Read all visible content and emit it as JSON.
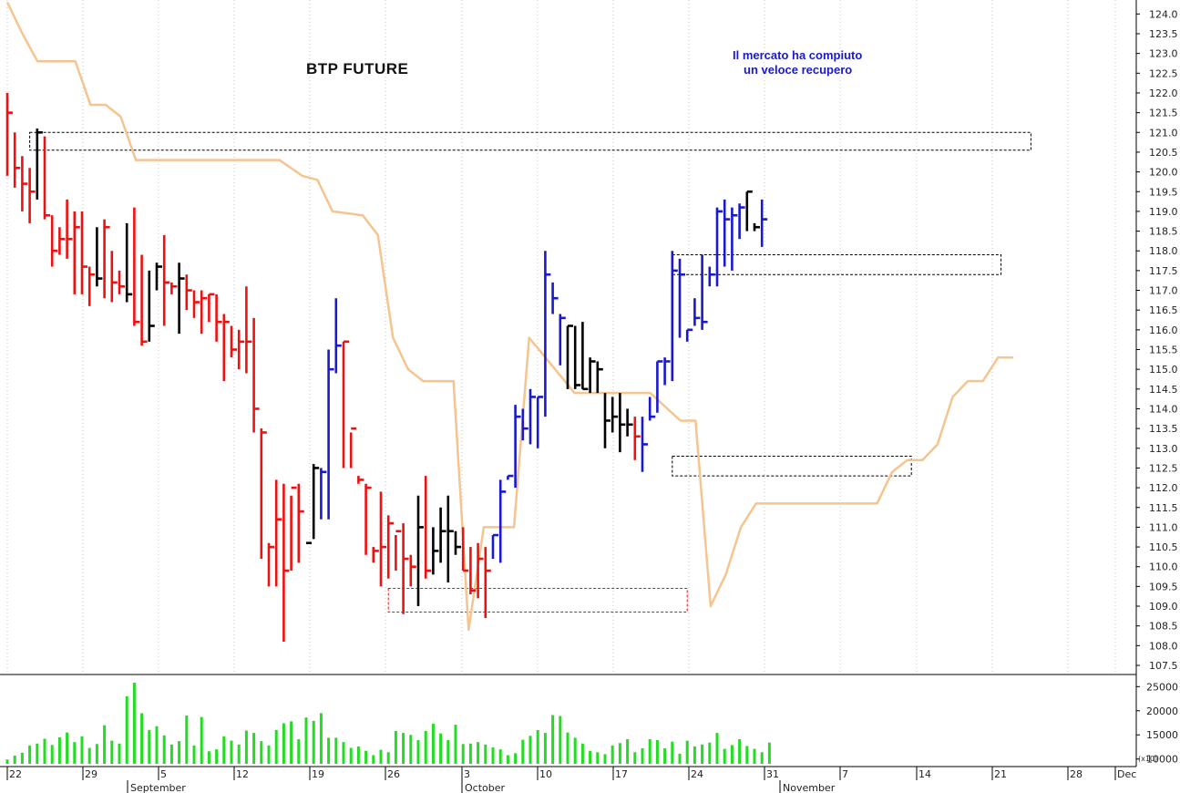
{
  "title": "BTP  FUTURE",
  "annotation": [
    "Il mercato ha compiuto",
    "un veloce recupero"
  ],
  "volume_multiplier_label": "(x10)",
  "colors": {
    "down": "#ee1111",
    "up": "#1a1acc",
    "neutral": "#000000",
    "trailing_stop": "#f6c48e",
    "volume": "#22dd22",
    "box_black": "#000000",
    "box_red": "#ee1111"
  },
  "chart_data": [
    {
      "type": "ohlc",
      "title": "BTP  FUTURE",
      "x_day_labels": [
        "22",
        "29",
        "5",
        "12",
        "19",
        "26",
        "3",
        "10",
        "17",
        "24",
        "31",
        "7",
        "14",
        "21",
        "28",
        "Dec"
      ],
      "x_month_labels": [
        "September",
        "October",
        "November"
      ],
      "y_ticks": [
        107.5,
        108.0,
        108.5,
        109.0,
        109.5,
        110.0,
        110.5,
        111.0,
        111.5,
        112.0,
        112.5,
        113.0,
        113.5,
        114.0,
        114.5,
        115.0,
        115.5,
        116.0,
        116.5,
        117.0,
        117.5,
        118.0,
        118.5,
        119.0,
        119.5,
        120.0,
        120.5,
        121.0,
        121.5,
        122.0,
        122.5,
        123.0,
        123.5,
        124.0
      ],
      "ylim": [
        107.2,
        124.3
      ],
      "bars": [
        {
          "h": 122.0,
          "l": 119.9,
          "c": 121.5,
          "col": "down"
        },
        {
          "h": 121.0,
          "l": 119.6,
          "c": 120.1,
          "col": "down"
        },
        {
          "h": 120.4,
          "l": 119.0,
          "c": 119.7,
          "col": "down"
        },
        {
          "h": 120.1,
          "l": 118.7,
          "c": 119.5,
          "col": "down"
        },
        {
          "h": 121.1,
          "l": 119.3,
          "c": 121.0,
          "col": "neutral"
        },
        {
          "h": 120.9,
          "l": 118.8,
          "c": 118.9,
          "col": "down"
        },
        {
          "h": 118.9,
          "l": 117.6,
          "c": 118.0,
          "col": "down"
        },
        {
          "h": 118.6,
          "l": 117.9,
          "c": 118.3,
          "col": "down"
        },
        {
          "h": 119.3,
          "l": 117.8,
          "c": 118.3,
          "col": "down"
        },
        {
          "h": 119.0,
          "l": 116.9,
          "c": 118.6,
          "col": "down"
        },
        {
          "h": 119.0,
          "l": 116.9,
          "c": 117.6,
          "col": "down"
        },
        {
          "h": 117.6,
          "l": 116.6,
          "c": 117.4,
          "col": "down"
        },
        {
          "h": 118.6,
          "l": 117.1,
          "c": 117.3,
          "col": "neutral"
        },
        {
          "h": 118.8,
          "l": 116.8,
          "c": 118.6,
          "col": "down"
        },
        {
          "h": 118.0,
          "l": 116.7,
          "c": 117.2,
          "col": "down"
        },
        {
          "h": 117.5,
          "l": 116.9,
          "c": 117.1,
          "col": "down"
        },
        {
          "h": 118.7,
          "l": 116.7,
          "c": 116.9,
          "col": "neutral"
        },
        {
          "h": 119.1,
          "l": 116.1,
          "c": 116.2,
          "col": "down"
        },
        {
          "h": 117.9,
          "l": 115.6,
          "c": 115.7,
          "col": "down"
        },
        {
          "h": 117.5,
          "l": 115.7,
          "c": 116.1,
          "col": "neutral"
        },
        {
          "h": 117.7,
          "l": 117.0,
          "c": 117.6,
          "col": "neutral"
        },
        {
          "h": 118.4,
          "l": 116.1,
          "c": 117.2,
          "col": "down"
        },
        {
          "h": 117.2,
          "l": 116.9,
          "c": 117.1,
          "col": "down"
        },
        {
          "h": 117.7,
          "l": 115.9,
          "c": 117.3,
          "col": "neutral"
        },
        {
          "h": 117.4,
          "l": 116.5,
          "c": 117.0,
          "col": "down"
        },
        {
          "h": 117.0,
          "l": 116.3,
          "c": 116.7,
          "col": "down"
        },
        {
          "h": 117.0,
          "l": 115.9,
          "c": 116.8,
          "col": "down"
        },
        {
          "h": 116.9,
          "l": 116.2,
          "c": 116.9,
          "col": "down"
        },
        {
          "h": 116.9,
          "l": 115.7,
          "c": 116.2,
          "col": "down"
        },
        {
          "h": 116.4,
          "l": 114.7,
          "c": 116.2,
          "col": "down"
        },
        {
          "h": 116.1,
          "l": 115.3,
          "c": 115.5,
          "col": "down"
        },
        {
          "h": 116.0,
          "l": 115.0,
          "c": 115.7,
          "col": "down"
        },
        {
          "h": 117.1,
          "l": 114.9,
          "c": 115.7,
          "col": "down"
        },
        {
          "h": 116.3,
          "l": 113.4,
          "c": 114.0,
          "col": "down"
        },
        {
          "h": 113.5,
          "l": 110.2,
          "c": 113.4,
          "col": "down"
        },
        {
          "h": 110.6,
          "l": 109.5,
          "c": 110.5,
          "col": "down"
        },
        {
          "h": 112.2,
          "l": 109.5,
          "c": 111.2,
          "col": "down"
        },
        {
          "h": 112.1,
          "l": 108.1,
          "c": 109.9,
          "col": "down"
        },
        {
          "h": 111.8,
          "l": 109.9,
          "c": 112.0,
          "col": "down"
        },
        {
          "h": 112.1,
          "l": 110.1,
          "c": 111.4,
          "col": "down"
        },
        {
          "h": 110.2,
          "l": 110.2,
          "c": 110.6,
          "col": "neutral"
        },
        {
          "h": 112.6,
          "l": 110.7,
          "c": 112.5,
          "col": "neutral"
        },
        {
          "h": 112.5,
          "l": 111.2,
          "c": 112.4,
          "col": "up"
        },
        {
          "h": 115.5,
          "l": 111.2,
          "c": 115.0,
          "col": "up"
        },
        {
          "h": 116.8,
          "l": 114.9,
          "c": 115.6,
          "col": "up"
        },
        {
          "h": 115.7,
          "l": 112.5,
          "c": 115.7,
          "col": "down"
        },
        {
          "h": 113.4,
          "l": 112.5,
          "c": 113.5,
          "col": "down"
        },
        {
          "h": 112.3,
          "l": 112.1,
          "c": 112.2,
          "col": "down"
        },
        {
          "h": 112.1,
          "l": 110.3,
          "c": 112.0,
          "col": "down"
        },
        {
          "h": 110.5,
          "l": 110.1,
          "c": 110.4,
          "col": "down"
        },
        {
          "h": 111.9,
          "l": 109.5,
          "c": 110.5,
          "col": "down"
        },
        {
          "h": 111.3,
          "l": 109.7,
          "c": 111.1,
          "col": "down"
        },
        {
          "h": 110.8,
          "l": 109.9,
          "c": 110.9,
          "col": "down"
        },
        {
          "h": 111.1,
          "l": 108.8,
          "c": 110.2,
          "col": "down"
        },
        {
          "h": 110.3,
          "l": 109.5,
          "c": 110.0,
          "col": "down"
        },
        {
          "h": 111.8,
          "l": 109.0,
          "c": 111.0,
          "col": "neutral"
        },
        {
          "h": 112.3,
          "l": 109.7,
          "c": 109.9,
          "col": "down"
        },
        {
          "h": 111.0,
          "l": 109.8,
          "c": 110.4,
          "col": "neutral"
        },
        {
          "h": 111.5,
          "l": 110.1,
          "c": 110.9,
          "col": "neutral"
        },
        {
          "h": 111.8,
          "l": 109.6,
          "c": 110.9,
          "col": "neutral"
        },
        {
          "h": 110.9,
          "l": 110.3,
          "c": 110.5,
          "col": "neutral"
        },
        {
          "h": 111.0,
          "l": 109.9,
          "c": 109.9,
          "col": "down"
        },
        {
          "h": 110.5,
          "l": 109.3,
          "c": 109.4,
          "col": "down"
        },
        {
          "h": 110.6,
          "l": 109.2,
          "c": 110.2,
          "col": "down"
        },
        {
          "h": 110.5,
          "l": 108.7,
          "c": 109.9,
          "col": "down"
        },
        {
          "h": 110.8,
          "l": 110.2,
          "c": 110.8,
          "col": "up"
        },
        {
          "h": 112.2,
          "l": 110.1,
          "c": 111.9,
          "col": "up"
        },
        {
          "h": 112.3,
          "l": 112.2,
          "c": 112.3,
          "col": "up"
        },
        {
          "h": 114.1,
          "l": 112.0,
          "c": 113.8,
          "col": "up"
        },
        {
          "h": 114.0,
          "l": 113.2,
          "c": 113.5,
          "col": "up"
        },
        {
          "h": 114.5,
          "l": 113.1,
          "c": 114.3,
          "col": "up"
        },
        {
          "h": 114.3,
          "l": 113.0,
          "c": 114.3,
          "col": "up"
        },
        {
          "h": 118.0,
          "l": 113.8,
          "c": 117.4,
          "col": "up"
        },
        {
          "h": 117.2,
          "l": 116.4,
          "c": 116.8,
          "col": "up"
        },
        {
          "h": 116.4,
          "l": 115.1,
          "c": 116.3,
          "col": "up"
        },
        {
          "h": 116.1,
          "l": 114.5,
          "c": 116.1,
          "col": "neutral"
        },
        {
          "h": 116.1,
          "l": 114.5,
          "c": 114.6,
          "col": "neutral"
        },
        {
          "h": 116.2,
          "l": 114.5,
          "c": 114.5,
          "col": "neutral"
        },
        {
          "h": 115.3,
          "l": 114.4,
          "c": 115.2,
          "col": "neutral"
        },
        {
          "h": 115.2,
          "l": 114.4,
          "c": 115.0,
          "col": "neutral"
        },
        {
          "h": 114.4,
          "l": 113.0,
          "c": 113.7,
          "col": "neutral"
        },
        {
          "h": 114.3,
          "l": 113.4,
          "c": 113.8,
          "col": "neutral"
        },
        {
          "h": 114.4,
          "l": 112.9,
          "c": 113.6,
          "col": "neutral"
        },
        {
          "h": 114.0,
          "l": 113.3,
          "c": 113.6,
          "col": "neutral"
        },
        {
          "h": 113.8,
          "l": 112.7,
          "c": 113.3,
          "col": "down"
        },
        {
          "h": 113.8,
          "l": 112.4,
          "c": 113.1,
          "col": "up"
        },
        {
          "h": 114.3,
          "l": 113.7,
          "c": 113.8,
          "col": "up"
        },
        {
          "h": 115.2,
          "l": 113.9,
          "c": 115.2,
          "col": "up"
        },
        {
          "h": 115.3,
          "l": 114.6,
          "c": 115.2,
          "col": "up"
        },
        {
          "h": 118.0,
          "l": 114.7,
          "c": 117.5,
          "col": "up"
        },
        {
          "h": 117.8,
          "l": 115.8,
          "c": 117.4,
          "col": "up"
        },
        {
          "h": 116.0,
          "l": 115.7,
          "c": 116.0,
          "col": "up"
        },
        {
          "h": 116.8,
          "l": 116.1,
          "c": 116.3,
          "col": "up"
        },
        {
          "h": 117.9,
          "l": 116.0,
          "c": 116.2,
          "col": "up"
        },
        {
          "h": 117.6,
          "l": 117.1,
          "c": 117.4,
          "col": "up"
        },
        {
          "h": 119.1,
          "l": 117.1,
          "c": 119.0,
          "col": "up"
        },
        {
          "h": 119.3,
          "l": 117.6,
          "c": 118.8,
          "col": "up"
        },
        {
          "h": 119.1,
          "l": 117.5,
          "c": 118.9,
          "col": "up"
        },
        {
          "h": 119.2,
          "l": 118.3,
          "c": 119.1,
          "col": "up"
        },
        {
          "h": 119.5,
          "l": 118.5,
          "c": 119.5,
          "col": "neutral"
        },
        {
          "h": 118.7,
          "l": 118.5,
          "c": 118.6,
          "col": "neutral"
        },
        {
          "h": 119.3,
          "l": 118.1,
          "c": 118.8,
          "col": "up"
        }
      ],
      "trailing_stop": [
        [
          0,
          124.3
        ],
        [
          2,
          123.5
        ],
        [
          4,
          122.8
        ],
        [
          9,
          122.8
        ],
        [
          11,
          121.7
        ],
        [
          13,
          121.7
        ],
        [
          15,
          121.4
        ],
        [
          17,
          120.3
        ],
        [
          36,
          120.3
        ],
        [
          39,
          119.9
        ],
        [
          41,
          119.8
        ],
        [
          43,
          119.0
        ],
        [
          47,
          118.9
        ],
        [
          49,
          118.4
        ],
        [
          51,
          115.8
        ],
        [
          53,
          115.0
        ],
        [
          55,
          114.7
        ],
        [
          59,
          114.7
        ],
        [
          61,
          108.4
        ],
        [
          63,
          111.0
        ],
        [
          67,
          111.0
        ],
        [
          69,
          115.8
        ],
        [
          75,
          114.4
        ],
        [
          85,
          114.4
        ],
        [
          89,
          113.7
        ],
        [
          91,
          113.7
        ],
        [
          93,
          109.0
        ],
        [
          95,
          109.8
        ],
        [
          97,
          111.0
        ],
        [
          99,
          111.6
        ],
        [
          115,
          111.6
        ],
        [
          117,
          112.4
        ],
        [
          119,
          112.7
        ],
        [
          121,
          112.7
        ],
        [
          123,
          113.1
        ],
        [
          125,
          114.3
        ],
        [
          127,
          114.7
        ],
        [
          129,
          114.7
        ],
        [
          131,
          115.3
        ],
        [
          133,
          115.3
        ]
      ],
      "boxes": [
        {
          "x0": 3,
          "x1": 137,
          "y0": 120.55,
          "y1": 121.0,
          "col": "box_black"
        },
        {
          "x0": 89,
          "x1": 133,
          "y0": 117.4,
          "y1": 117.9,
          "col": "box_black"
        },
        {
          "x0": 89,
          "x1": 121,
          "y0": 112.3,
          "y1": 112.8,
          "col": "box_black"
        },
        {
          "x0": 51,
          "x1": 91,
          "y0": 108.85,
          "y1": 109.45,
          "col": "box_red"
        }
      ]
    },
    {
      "type": "bar",
      "title": "",
      "ylabel": "(x10)",
      "y_ticks": [
        10000,
        15000,
        20000,
        25000
      ],
      "ylim": [
        9000,
        28000
      ],
      "values": [
        9900,
        10700,
        11300,
        12800,
        13200,
        14200,
        12900,
        14500,
        15500,
        13500,
        14700,
        12300,
        13100,
        17000,
        13800,
        13200,
        23000,
        25800,
        19500,
        16000,
        16800,
        14900,
        13000,
        13700,
        19000,
        12800,
        18700,
        11600,
        12000,
        14700,
        13800,
        13000,
        15900,
        15400,
        13700,
        12800,
        16000,
        17400,
        17800,
        14100,
        18600,
        17900,
        19500,
        14400,
        14400,
        13500,
        12300,
        12600,
        11700,
        10800,
        11900,
        11400,
        15800,
        15400,
        15000,
        13900,
        15800,
        17300,
        15300,
        13900,
        17100,
        13100,
        13200,
        13500,
        13000,
        12400,
        12000,
        10800,
        11200,
        14000,
        14800,
        16000,
        15400,
        19100,
        18900,
        15500,
        14400,
        13200,
        11700,
        11400,
        11000,
        12800,
        13300,
        14100,
        11400,
        12200,
        14100,
        13900,
        12200,
        13600,
        11100,
        13800,
        12600,
        13000,
        13400,
        15400,
        12100,
        12900,
        14100,
        12700,
        12100,
        11400,
        13400
      ],
      "x": [
        0,
        2,
        4,
        6,
        8,
        10,
        12,
        14,
        16,
        18,
        20,
        22,
        24,
        26,
        28,
        30,
        32,
        34,
        36,
        38,
        40,
        42,
        44,
        46,
        48,
        50,
        52,
        54,
        56,
        58,
        60,
        62,
        64,
        66,
        68,
        70,
        72,
        74,
        76,
        78,
        80,
        82,
        84,
        86,
        88,
        90,
        92,
        94,
        96,
        98,
        100,
        102,
        104,
        106,
        108,
        110,
        112,
        114,
        116,
        118,
        120,
        122,
        124,
        126,
        128,
        130,
        132,
        134,
        136,
        138,
        140,
        142,
        144,
        146,
        148,
        150,
        152,
        154,
        156,
        158,
        160,
        162,
        164,
        166,
        168,
        170,
        172,
        174,
        176,
        178,
        180,
        182,
        184,
        186,
        188,
        190,
        192,
        194,
        196,
        198,
        200,
        202,
        204
      ]
    }
  ]
}
